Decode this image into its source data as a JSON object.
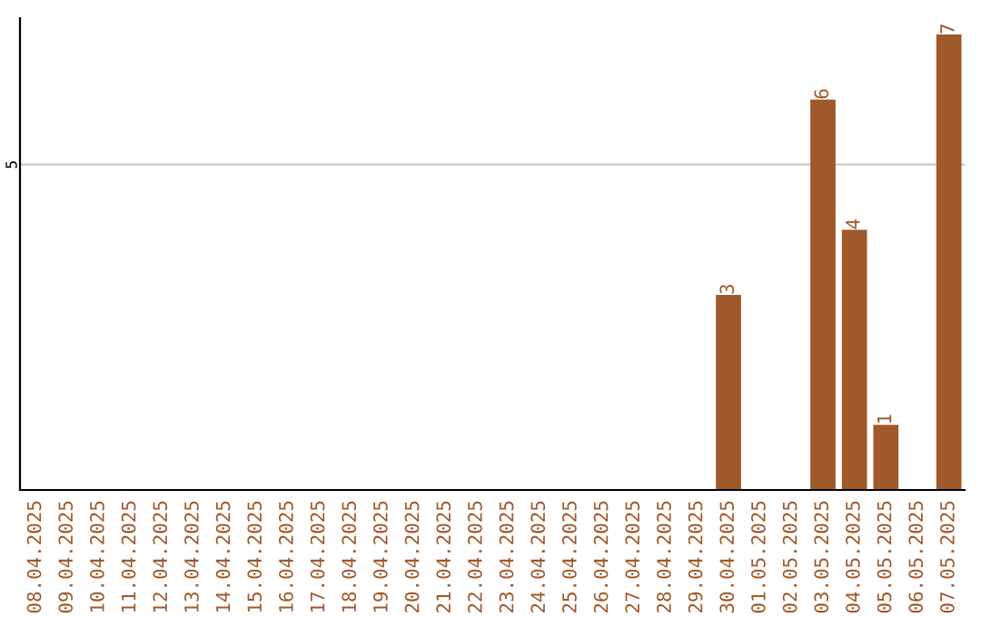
{
  "chart_data": {
    "type": "bar",
    "categories": [
      "08.04.2025",
      "09.04.2025",
      "10.04.2025",
      "11.04.2025",
      "12.04.2025",
      "13.04.2025",
      "14.04.2025",
      "15.04.2025",
      "16.04.2025",
      "17.04.2025",
      "18.04.2025",
      "19.04.2025",
      "20.04.2025",
      "21.04.2025",
      "22.04.2025",
      "23.04.2025",
      "24.04.2025",
      "25.04.2025",
      "26.04.2025",
      "27.04.2025",
      "28.04.2025",
      "29.04.2025",
      "30.04.2025",
      "01.05.2025",
      "02.05.2025",
      "03.05.2025",
      "04.05.2025",
      "05.05.2025",
      "06.05.2025",
      "07.05.2025"
    ],
    "values": [
      null,
      null,
      null,
      null,
      null,
      null,
      null,
      null,
      null,
      null,
      null,
      null,
      null,
      null,
      null,
      null,
      null,
      null,
      null,
      null,
      null,
      null,
      3,
      null,
      null,
      6,
      4,
      1,
      null,
      7
    ],
    "data_labels": true,
    "color": "#a0592a",
    "ref_lines": [
      {
        "axis": "y",
        "value": 5,
        "label": "5",
        "color": "#c8c8c8"
      }
    ]
  }
}
